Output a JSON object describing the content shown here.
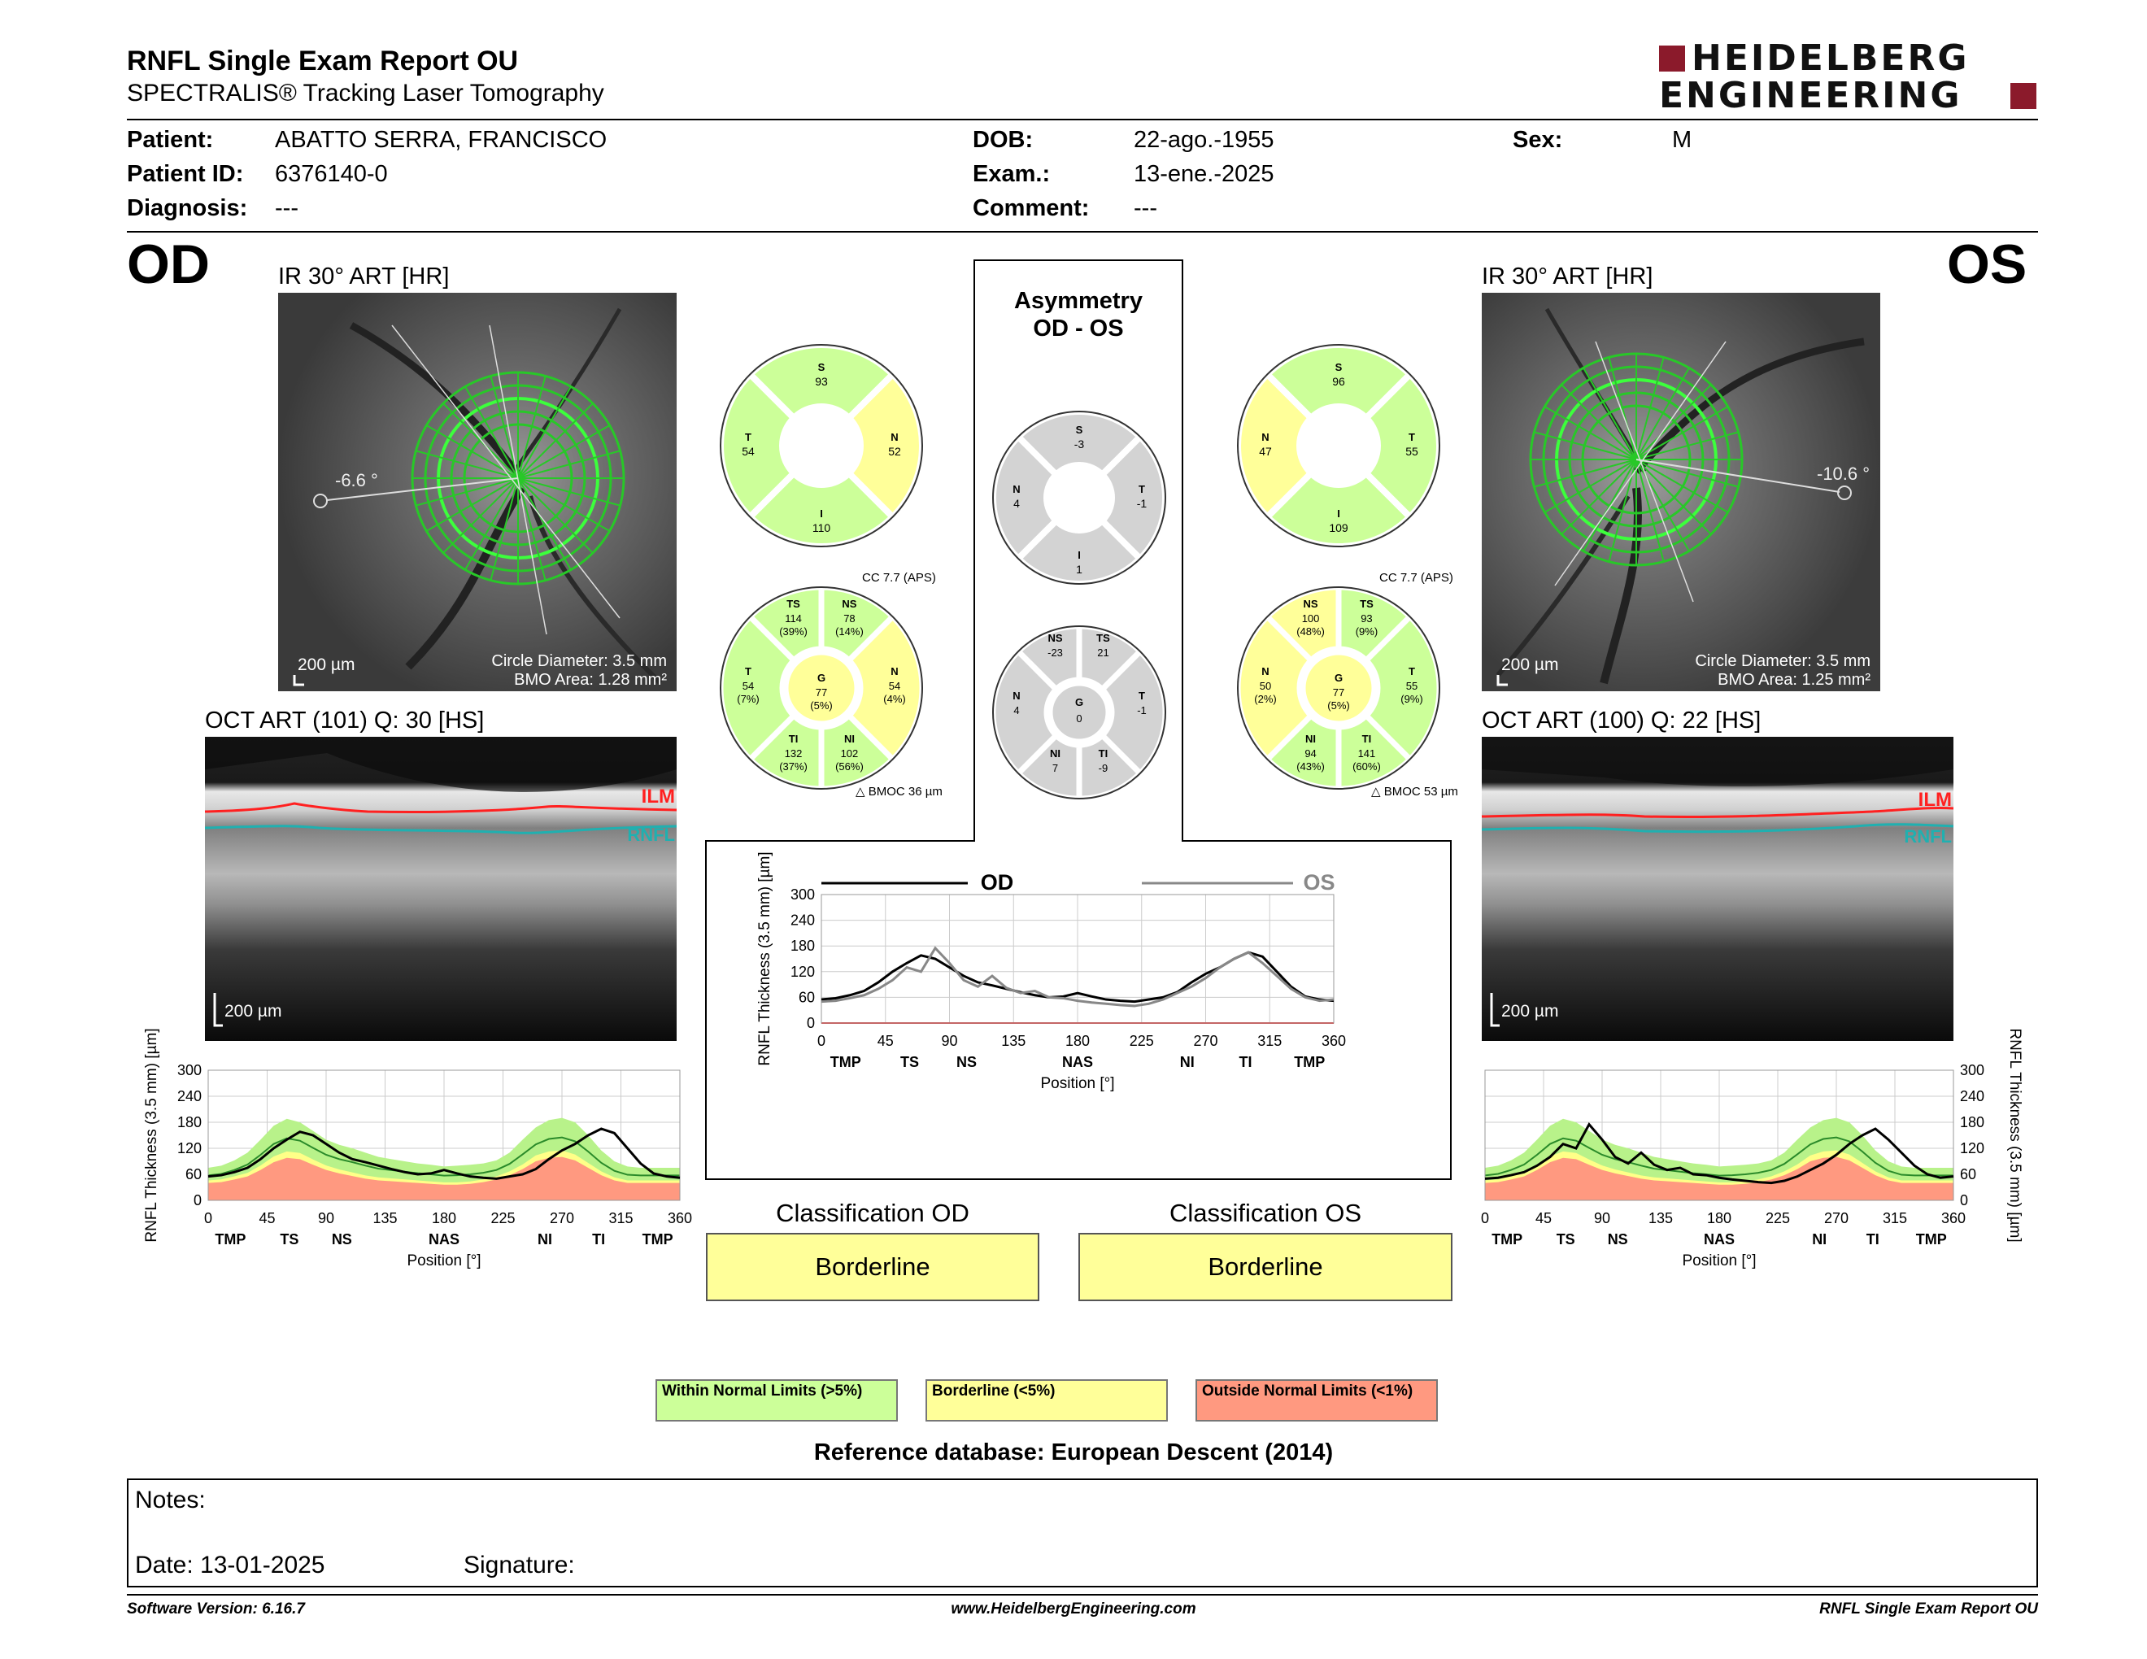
{
  "header": {
    "title": "RNFL Single Exam Report OU",
    "subtitle": "SPECTRALIS® Tracking Laser Tomography",
    "logo_line1": "HEIDELBERG",
    "logo_line2": "ENGINEERING",
    "brand_color": "#8b1a2b"
  },
  "patient": {
    "patient_label": "Patient:",
    "patient_value": "ABATTO SERRA, FRANCISCO",
    "id_label": "Patient ID:",
    "id_value": "6376140-0",
    "diagnosis_label": "Diagnosis:",
    "diagnosis_value": "---",
    "dob_label": "DOB:",
    "dob_value": "22-ago.-1955",
    "exam_label": "Exam.:",
    "exam_value": "13-ene.-2025",
    "comment_label": "Comment:",
    "comment_value": "---",
    "sex_label": "Sex:",
    "sex_value": "M"
  },
  "od": {
    "eye": "OD",
    "ir_caption": "IR 30° ART [HR]",
    "angle": "-6.6 °",
    "scale": "200 µm",
    "circle_diameter": "Circle Diameter: 3.5 mm",
    "bmo_area": "BMO Area: 1.28 mm²",
    "oct_caption": "OCT ART (101) Q: 30 [HS]",
    "oct_scale": "200 µm",
    "ilm": "ILM",
    "rnfl": "RNFL",
    "cc": "CC 7.7 (APS)",
    "bmoc": "BMOC 36 µm",
    "quadrants": {
      "S": "93",
      "N": "52",
      "I": "110",
      "T": "54"
    },
    "sectors": {
      "TS": [
        "114",
        "(39%)"
      ],
      "NS": [
        "78",
        "(14%)"
      ],
      "N": [
        "54",
        "(4%)"
      ],
      "NI": [
        "102",
        "(56%)"
      ],
      "TI": [
        "132",
        "(37%)"
      ],
      "T": [
        "54",
        "(7%)"
      ],
      "G": [
        "77",
        "(5%)"
      ]
    },
    "classification_title": "Classification OD",
    "classification": "Borderline"
  },
  "os": {
    "eye": "OS",
    "ir_caption": "IR 30° ART [HR]",
    "angle": "-10.6 °",
    "scale": "200 µm",
    "circle_diameter": "Circle Diameter: 3.5 mm",
    "bmo_area": "BMO Area: 1.25 mm²",
    "oct_caption": "OCT ART (100) Q: 22 [HS]",
    "oct_scale": "200 µm",
    "ilm": "ILM",
    "rnfl": "RNFL",
    "cc": "CC 7.7 (APS)",
    "bmoc": "BMOC 53 µm",
    "quadrants": {
      "S": "96",
      "N": "47",
      "I": "109",
      "T": "55"
    },
    "sectors": {
      "NS": [
        "100",
        "(48%)"
      ],
      "TS": [
        "93",
        "(9%)"
      ],
      "T": [
        "55",
        "(9%)"
      ],
      "TI": [
        "141",
        "(60%)"
      ],
      "NI": [
        "94",
        "(43%)"
      ],
      "N": [
        "50",
        "(2%)"
      ],
      "G": [
        "77",
        "(5%)"
      ]
    },
    "classification_title": "Classification OS",
    "classification": "Borderline"
  },
  "asymmetry": {
    "title1": "Asymmetry",
    "title2": "OD - OS",
    "quadrants": {
      "S": "-3",
      "N": "4",
      "I": "1",
      "T": "-1"
    },
    "sectors": {
      "NS": "-23",
      "TS": "21",
      "T": "-1",
      "TI": "-9",
      "NI": "7",
      "N": "4",
      "G": "0"
    }
  },
  "chart_data": [
    {
      "type": "line",
      "id": "od-profile",
      "ylabel": "RNFL Thickness (3.5 mm) [µm]",
      "xlabel": "Position [°]",
      "xlim": [
        0,
        360
      ],
      "ylim": [
        0,
        300
      ],
      "x_ticks": [
        0,
        45,
        90,
        135,
        180,
        225,
        270,
        315,
        360
      ],
      "y_ticks": [
        0,
        60,
        120,
        180,
        240,
        300
      ],
      "sector_labels": [
        "TMP",
        "TS",
        "NS",
        "NAS",
        "NI",
        "TI",
        "TMP"
      ],
      "sector_positions": [
        17,
        62,
        102,
        180,
        257,
        298,
        343
      ],
      "series": [
        {
          "values": [
            55,
            58,
            65,
            75,
            95,
            120,
            140,
            158,
            150,
            130,
            110,
            95,
            88,
            80,
            72,
            65,
            60,
            62,
            70,
            62,
            55,
            52,
            50,
            55,
            60,
            72,
            95,
            115,
            130,
            150,
            165,
            155,
            120,
            85,
            62,
            55,
            52
          ]
        }
      ],
      "normal_band": {
        "green_upper": [
          75,
          80,
          92,
          110,
          140,
          172,
          188,
          180,
          160,
          140,
          128,
          120,
          110,
          100,
          95,
          90,
          85,
          82,
          78,
          80,
          82,
          85,
          92,
          110,
          140,
          168,
          185,
          190,
          180,
          150,
          115,
          90,
          78,
          75,
          75,
          75,
          75
        ],
        "green_lower": [
          40,
          42,
          48,
          55,
          70,
          88,
          98,
          95,
          82,
          70,
          62,
          56,
          50,
          46,
          44,
          42,
          40,
          38,
          36,
          36,
          38,
          42,
          48,
          58,
          72,
          90,
          98,
          100,
          92,
          75,
          58,
          46,
          40,
          40,
          40,
          40,
          40
        ]
      }
    },
    {
      "type": "line",
      "id": "os-profile",
      "ylabel": "RNFL Thickness (3.5 mm) [µm]",
      "xlabel": "Position [°]",
      "xlim": [
        0,
        360
      ],
      "ylim": [
        0,
        300
      ],
      "x_ticks": [
        0,
        45,
        90,
        135,
        180,
        225,
        270,
        315,
        360
      ],
      "y_ticks": [
        0,
        60,
        120,
        180,
        240,
        300
      ],
      "sector_labels": [
        "TMP",
        "TS",
        "NS",
        "NAS",
        "NI",
        "TI",
        "TMP"
      ],
      "sector_positions": [
        17,
        62,
        102,
        180,
        257,
        298,
        343
      ],
      "series": [
        {
          "values": [
            50,
            52,
            58,
            65,
            80,
            100,
            130,
            120,
            175,
            140,
            100,
            85,
            110,
            82,
            70,
            75,
            60,
            58,
            52,
            48,
            45,
            42,
            40,
            45,
            55,
            70,
            85,
            105,
            130,
            150,
            165,
            140,
            110,
            80,
            60,
            52,
            55
          ]
        }
      ],
      "normal_band": {
        "green_upper": [
          75,
          80,
          92,
          110,
          140,
          172,
          188,
          180,
          160,
          140,
          128,
          120,
          110,
          100,
          95,
          90,
          85,
          82,
          78,
          80,
          82,
          85,
          92,
          110,
          140,
          168,
          185,
          190,
          180,
          150,
          115,
          90,
          78,
          75,
          75,
          75,
          75
        ],
        "green_lower": [
          40,
          42,
          48,
          55,
          70,
          88,
          98,
          95,
          82,
          70,
          62,
          56,
          50,
          46,
          44,
          42,
          40,
          38,
          36,
          36,
          38,
          42,
          48,
          58,
          72,
          90,
          98,
          100,
          92,
          75,
          58,
          46,
          40,
          40,
          40,
          40,
          40
        ]
      }
    },
    {
      "type": "line",
      "id": "comparison",
      "ylabel": "RNFL Thickness (3.5 mm) [µm]",
      "xlabel": "Position [°]",
      "xlim": [
        0,
        360
      ],
      "ylim": [
        0,
        300
      ],
      "x_ticks": [
        0,
        45,
        90,
        135,
        180,
        225,
        270,
        315,
        360
      ],
      "y_ticks": [
        0,
        60,
        120,
        180,
        240,
        300
      ],
      "sector_labels": [
        "TMP",
        "TS",
        "NS",
        "NAS",
        "NI",
        "TI",
        "TMP"
      ],
      "sector_positions": [
        17,
        62,
        102,
        180,
        257,
        298,
        343
      ],
      "series": [
        {
          "name": "OD",
          "color": "#000000",
          "values": [
            55,
            58,
            65,
            75,
            95,
            120,
            140,
            158,
            150,
            130,
            110,
            95,
            88,
            80,
            72,
            65,
            60,
            62,
            70,
            62,
            55,
            52,
            50,
            55,
            60,
            72,
            95,
            115,
            130,
            150,
            165,
            155,
            120,
            85,
            62,
            55,
            52
          ]
        },
        {
          "name": "OS",
          "color": "#888888",
          "values": [
            50,
            52,
            58,
            65,
            80,
            100,
            130,
            120,
            175,
            140,
            100,
            85,
            110,
            82,
            70,
            75,
            60,
            58,
            52,
            48,
            45,
            42,
            40,
            45,
            55,
            70,
            85,
            105,
            130,
            150,
            165,
            140,
            110,
            80,
            60,
            52,
            55
          ]
        }
      ]
    }
  ],
  "classification_legend": {
    "normal": "Within Normal Limits (>5%)",
    "borderline": "Borderline (<5%)",
    "outside": "Outside Normal Limits (<1%)"
  },
  "reference": "Reference database: European Descent (2014)",
  "notes": {
    "notes_label": "Notes:",
    "date_label": "Date: 13-01-2025",
    "signature_label": "Signature:"
  },
  "footer": {
    "software": "Software Version: 6.16.7",
    "website": "www.HeidelbergEngineering.com",
    "report": "RNFL Single Exam Report OU"
  },
  "colors": {
    "normal_green": "#ccff99",
    "borderline_yellow": "#ffff99",
    "outside_red": "#ff9980",
    "neutral_gray": "#d3d3d3",
    "ilm_red": "#ff2020",
    "rnfl_cyan": "#20b0b0"
  }
}
